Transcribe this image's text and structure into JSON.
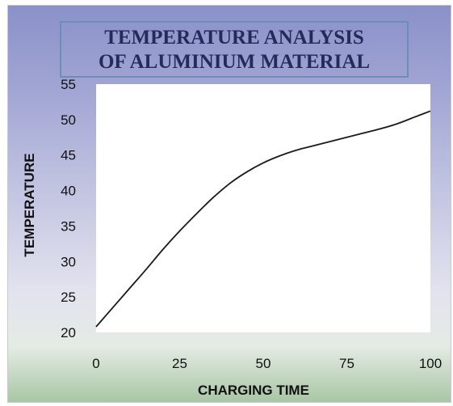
{
  "chart_data": {
    "type": "line",
    "title_lines": [
      "TEMPERATURE ANALYSIS",
      "OF ALUMINIUM MATERIAL"
    ],
    "xlabel": "CHARGING TIME",
    "ylabel": "TEMPERATURE",
    "xlim": [
      0,
      100
    ],
    "ylim": [
      20,
      55
    ],
    "x_ticks": [
      "0",
      "25",
      "50",
      "75",
      "100"
    ],
    "y_ticks": [
      "20",
      "25",
      "30",
      "35",
      "40",
      "45",
      "50",
      "55"
    ],
    "grid": false,
    "legend": "none",
    "line_color": "#1a1a1a",
    "series": [
      {
        "x": [
          0,
          5,
          10,
          15,
          20,
          25,
          30,
          35,
          40,
          45,
          50,
          55,
          60,
          65,
          70,
          75,
          80,
          85,
          90,
          95,
          100
        ],
        "values": [
          20.8,
          23.5,
          26.2,
          28.9,
          31.7,
          34.3,
          36.7,
          39.0,
          41.0,
          42.6,
          43.9,
          44.9,
          45.7,
          46.3,
          46.9,
          47.5,
          48.1,
          48.7,
          49.4,
          50.3,
          51.2
        ]
      }
    ]
  }
}
